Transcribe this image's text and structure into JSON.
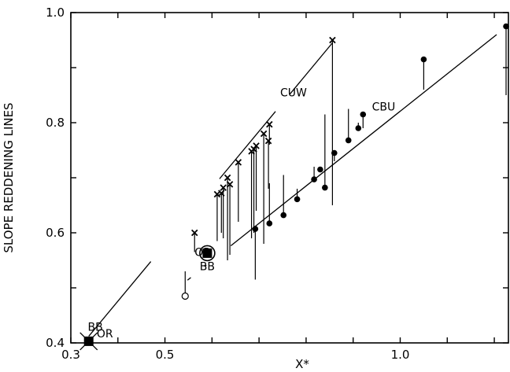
{
  "chart_data": {
    "type": "scatter",
    "title": "",
    "xlabel": "X*",
    "ylabel": "SLOPE REDDENING LINES",
    "xlim": [
      0.3,
      1.23
    ],
    "ylim": [
      0.4,
      1.0
    ],
    "x_ticks": [
      0.3,
      0.5,
      1.0
    ],
    "x_tick_labels": [
      "0.3",
      "0.5",
      "1.0"
    ],
    "y_ticks": [
      0.4,
      0.6,
      0.8,
      1.0
    ],
    "y_tick_labels": [
      "0.4",
      "0.6",
      "0.8",
      "1.0"
    ],
    "grid": false,
    "series": [
      {
        "name": "CUW",
        "marker": "cross",
        "points": [
          {
            "x": 0.563,
            "y": 0.6,
            "lo": 0.565
          },
          {
            "x": 0.611,
            "y": 0.67,
            "lo": 0.585
          },
          {
            "x": 0.62,
            "y": 0.672,
            "lo": 0.6
          },
          {
            "x": 0.624,
            "y": 0.682,
            "lo": 0.59
          },
          {
            "x": 0.633,
            "y": 0.7,
            "lo": 0.55
          },
          {
            "x": 0.638,
            "y": 0.688,
            "lo": 0.56
          },
          {
            "x": 0.656,
            "y": 0.728,
            "lo": 0.62
          },
          {
            "x": 0.684,
            "y": 0.748,
            "lo": 0.59
          },
          {
            "x": 0.689,
            "y": 0.752,
            "lo": 0.6
          },
          {
            "x": 0.694,
            "y": 0.758,
            "lo": 0.64
          },
          {
            "x": 0.71,
            "y": 0.78,
            "lo": 0.58
          },
          {
            "x": 0.72,
            "y": 0.767,
            "lo": 0.68
          },
          {
            "x": 0.722,
            "y": 0.797,
            "lo": 0.76
          },
          {
            "x": 0.856,
            "y": 0.95,
            "lo": 0.65
          }
        ]
      },
      {
        "name": "CBU",
        "marker": "filled-circle",
        "points": [
          {
            "x": 0.692,
            "y": 0.607,
            "lo": 0.515
          },
          {
            "x": 0.722,
            "y": 0.617,
            "hi": 0.69
          },
          {
            "x": 0.752,
            "y": 0.632,
            "hi": 0.705
          },
          {
            "x": 0.781,
            "y": 0.661,
            "hi": 0.68
          },
          {
            "x": 0.817,
            "y": 0.697,
            "hi": 0.72
          },
          {
            "x": 0.83,
            "y": 0.715,
            "hi": 0.72
          },
          {
            "x": 0.84,
            "y": 0.682,
            "hi": 0.815
          },
          {
            "x": 0.86,
            "y": 0.745,
            "lo": 0.73
          },
          {
            "x": 0.89,
            "y": 0.768,
            "hi": 0.825
          },
          {
            "x": 0.911,
            "y": 0.79,
            "hi": 0.8
          },
          {
            "x": 0.921,
            "y": 0.815,
            "lo": 0.79
          },
          {
            "x": 1.05,
            "y": 0.915,
            "lo": 0.86
          },
          {
            "x": 1.225,
            "y": 0.975,
            "lo": 0.85
          }
        ]
      },
      {
        "name": "open",
        "marker": "open-circle",
        "points": [
          {
            "x": 0.543,
            "y": 0.485,
            "hi": 0.53
          }
        ]
      }
    ],
    "fit_lines": [
      {
        "name": "CUW",
        "x": [
          0.338,
          0.856
        ],
        "y": [
          0.412,
          0.945
        ],
        "gaps": [
          [
            0.47,
            0.616
          ],
          [
            0.735,
            0.765
          ]
        ]
      },
      {
        "name": "CBU",
        "x": [
          0.548,
          1.205
        ],
        "y": [
          0.514,
          0.96
        ],
        "gaps": [
          [
            0.555,
            0.585
          ],
          [
            0.588,
            0.64
          ]
        ]
      }
    ],
    "special_points": [
      {
        "name": "BB",
        "x": 0.338,
        "y": 0.403,
        "marker": "filled-square-cross"
      },
      {
        "name": "BB",
        "x": 0.59,
        "y": 0.563,
        "marker": "circled-filled-square"
      }
    ],
    "annotations": [
      {
        "text": "CUW",
        "x": 0.745,
        "y": 0.848
      },
      {
        "text": "CBU",
        "x": 0.94,
        "y": 0.822
      },
      {
        "text": "BB",
        "x": 0.336,
        "y": 0.422
      },
      {
        "text": "OR",
        "x": 0.355,
        "y": 0.41
      },
      {
        "text": "BB",
        "x": 0.574,
        "y": 0.532
      },
      {
        "text": "OR",
        "x": 0.563,
        "y": 0.558
      }
    ]
  }
}
